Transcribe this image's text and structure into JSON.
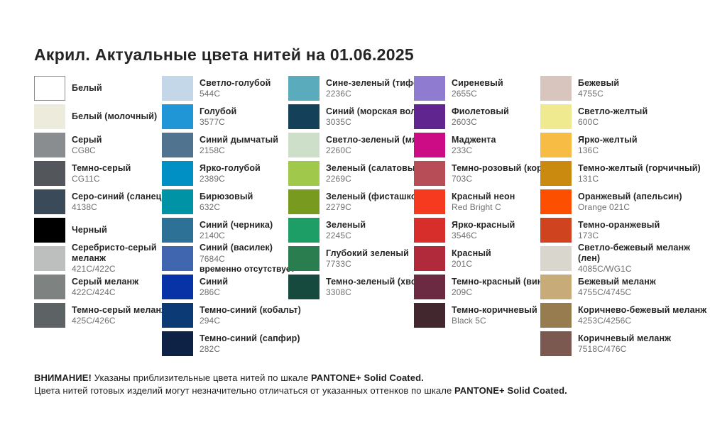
{
  "title": "Акрил. Актуальные цвета нитей на 01.06.2025",
  "footer": {
    "line1_bold_prefix": "ВНИМАНИЕ!",
    "line1_text": " Указаны приблизительные цвета нитей по шкале ",
    "line1_bold_suffix": "PANTONE+ Solid Coated.",
    "line2_text": "Цвета нитей готовых изделий могут незначительно отличаться от указанных оттенков по шкале ",
    "line2_bold_suffix": "PANTONE+ Solid Coated."
  },
  "columns": [
    {
      "swatches": [
        {
          "name": "Белый",
          "code": "",
          "color": "#FFFFFF",
          "bordered": true
        },
        {
          "name": "Белый (молочный)",
          "code": "",
          "color": "#EDECDC"
        },
        {
          "name": "Серый",
          "code": "CG8C",
          "color": "#898D90"
        },
        {
          "name": "Темно-серый",
          "code": "CG11C",
          "color": "#53565A"
        },
        {
          "name": "Серо-синий (сланец)",
          "code": "4138C",
          "color": "#3A4A59"
        },
        {
          "name": "Черный",
          "code": "",
          "color": "#000000"
        },
        {
          "name": "Серебристо-серый\nмеланж",
          "code": "421C/422C",
          "color": "#BDBFBF"
        },
        {
          "name": "Серый меланж",
          "code": "422C/424C",
          "color": "#7E8281"
        },
        {
          "name": "Темно-серый меланж",
          "code": "425C/426C",
          "color": "#5D6365"
        }
      ]
    },
    {
      "swatches": [
        {
          "name": "Светло-голубой",
          "code": "544C",
          "color": "#C4D7E9"
        },
        {
          "name": "Голубой",
          "code": "3577C",
          "color": "#2196D6"
        },
        {
          "name": "Синий дымчатый",
          "code": "2158C",
          "color": "#50748F"
        },
        {
          "name": "Ярко-голубой",
          "code": "2389C",
          "color": "#0090C3"
        },
        {
          "name": "Бирюзовый",
          "code": "632C",
          "color": "#0092A5"
        },
        {
          "name": "Синий (черника)",
          "code": "2140C",
          "color": "#2E7196"
        },
        {
          "name": "Синий (василек)",
          "code": "7684C",
          "color": "#3F66AE",
          "note": "временно отсутствует"
        },
        {
          "name": "Синий",
          "code": "286C",
          "color": "#0833A6"
        },
        {
          "name": "Темно-синий (кобальт)",
          "code": "294C",
          "color": "#0B3A75"
        },
        {
          "name": "Темно-синий (сапфир)",
          "code": "282C",
          "color": "#0E2245"
        }
      ]
    },
    {
      "swatches": [
        {
          "name": "Сине-зеленый (тиффани)",
          "code": "2236C",
          "color": "#5AACBD"
        },
        {
          "name": "Синий (морская волна)",
          "code": "3035C",
          "color": "#14405A"
        },
        {
          "name": "Светло-зеленый (мята)",
          "code": "2260C",
          "color": "#CDDFC8"
        },
        {
          "name": "Зеленый (салатовый)",
          "code": "2269C",
          "color": "#A0C84A"
        },
        {
          "name": "Зеленый (фисташковый)",
          "code": "2279C",
          "color": "#789A1E"
        },
        {
          "name": "Зеленый",
          "code": "2245C",
          "color": "#1C9E66"
        },
        {
          "name": "Глубокий зеленый",
          "code": "7733C",
          "color": "#2A7D4F"
        },
        {
          "name": "Темно-зеленый (хвойный)",
          "code": "3308C",
          "color": "#174A3F"
        }
      ]
    },
    {
      "swatches": [
        {
          "name": "Сиреневый",
          "code": "2655C",
          "color": "#8F7BD0"
        },
        {
          "name": "Фиолетовый",
          "code": "2603C",
          "color": "#61258F"
        },
        {
          "name": "Маджента",
          "code": "233C",
          "color": "#CC0C85"
        },
        {
          "name": "Темно-розовый (коралл)",
          "code": "703C",
          "color": "#B74D57"
        },
        {
          "name": "Красный неон",
          "code": "Red Bright C",
          "color": "#F53A20"
        },
        {
          "name": "Ярко-красный",
          "code": "3546C",
          "color": "#D82E2B"
        },
        {
          "name": "Красный",
          "code": "201C",
          "color": "#B02A3C"
        },
        {
          "name": "Темно-красный (винный)",
          "code": "209C",
          "color": "#6B2A42"
        },
        {
          "name": "Темно-коричневый",
          "code": "Black 5C",
          "color": "#43272E"
        }
      ]
    },
    {
      "swatches": [
        {
          "name": "Бежевый",
          "code": "4755C",
          "color": "#D8C5BD"
        },
        {
          "name": "Светло-желтый",
          "code": "600C",
          "color": "#EFE98F"
        },
        {
          "name": "Ярко-желтый",
          "code": "136C",
          "color": "#F7BC43"
        },
        {
          "name": "Темно-желтый (горчичный)",
          "code": "131C",
          "color": "#C98A0F"
        },
        {
          "name": "Оранжевый (апельсин)",
          "code": "Orange 021C",
          "color": "#FC4F00"
        },
        {
          "name": "Темно-оранжевый",
          "code": "173C",
          "color": "#D0431F"
        },
        {
          "name": "Светло-бежевый меланж (лен)",
          "code": "4085C/WG1C",
          "color": "#D9D6CE"
        },
        {
          "name": "Бежевый меланж",
          "code": "4755C/4745C",
          "color": "#C7AB79"
        },
        {
          "name": "Коричнево-бежевый меланж",
          "code": "4253C/4256C",
          "color": "#967C4F"
        },
        {
          "name": "Коричневый меланж",
          "code": "7518C/476C",
          "color": "#7B5951"
        }
      ]
    }
  ]
}
